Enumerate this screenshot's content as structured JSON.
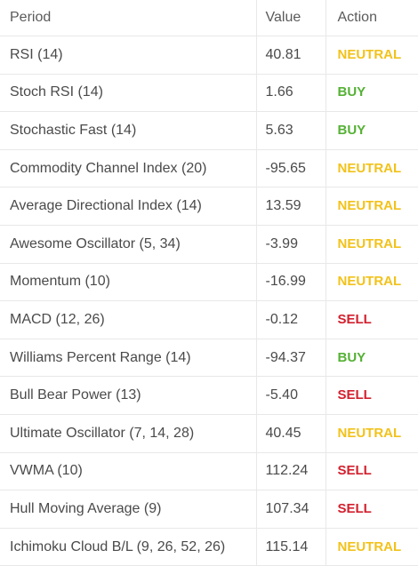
{
  "table": {
    "headers": {
      "period": "Period",
      "value": "Value",
      "action": "Action"
    },
    "rows": [
      {
        "period": "RSI (14)",
        "value": "40.81",
        "action": "NEUTRAL"
      },
      {
        "period": "Stoch RSI (14)",
        "value": "1.66",
        "action": "BUY"
      },
      {
        "period": "Stochastic Fast (14)",
        "value": "5.63",
        "action": "BUY"
      },
      {
        "period": "Commodity Channel Index (20)",
        "value": "-95.65",
        "action": "NEUTRAL"
      },
      {
        "period": "Average Directional Index (14)",
        "value": "13.59",
        "action": "NEUTRAL"
      },
      {
        "period": "Awesome Oscillator (5, 34)",
        "value": "-3.99",
        "action": "NEUTRAL"
      },
      {
        "period": "Momentum (10)",
        "value": "-16.99",
        "action": "NEUTRAL"
      },
      {
        "period": "MACD (12, 26)",
        "value": "-0.12",
        "action": "SELL"
      },
      {
        "period": "Williams Percent Range (14)",
        "value": "-94.37",
        "action": "BUY"
      },
      {
        "period": "Bull Bear Power (13)",
        "value": "-5.40",
        "action": "SELL"
      },
      {
        "period": "Ultimate Oscillator (7, 14, 28)",
        "value": "40.45",
        "action": "NEUTRAL"
      },
      {
        "period": "VWMA (10)",
        "value": "112.24",
        "action": "SELL"
      },
      {
        "period": "Hull Moving Average (9)",
        "value": "107.34",
        "action": "SELL"
      },
      {
        "period": "Ichimoku Cloud B/L (9, 26, 52, 26)",
        "value": "115.14",
        "action": "NEUTRAL"
      }
    ]
  },
  "colors": {
    "NEUTRAL": "#f2c21a",
    "BUY": "#55b135",
    "SELL": "#d3202e"
  }
}
